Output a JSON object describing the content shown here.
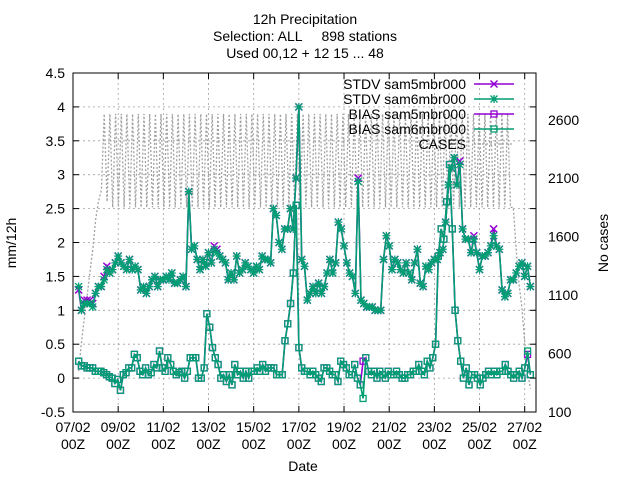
{
  "chart_data": {
    "type": "line",
    "title": [
      "12h Precipitation",
      "Selection: ALL     898 stations",
      "Used 00,12 + 12 15 ... 48"
    ],
    "xlabel": "Date",
    "ylabel": "mm/12h",
    "y2label": "No cases",
    "x_ticks": [
      [
        "07/02",
        "00Z"
      ],
      [
        "09/02",
        "00Z"
      ],
      [
        "11/02",
        "00Z"
      ],
      [
        "13/02",
        "00Z"
      ],
      [
        "15/02",
        "00Z"
      ],
      [
        "17/02",
        "00Z"
      ],
      [
        "19/02",
        "00Z"
      ],
      [
        "21/02",
        "00Z"
      ],
      [
        "23/02",
        "00Z"
      ],
      [
        "25/02",
        "00Z"
      ],
      [
        "27/02",
        "00Z"
      ]
    ],
    "x_range_days": [
      0,
      20.5
    ],
    "ylim": [
      -0.5,
      4.5
    ],
    "y_ticks": [
      "-0.5",
      "0",
      "0.5",
      "1",
      "1.5",
      "2",
      "2.5",
      "3",
      "3.5",
      "4",
      "4.5"
    ],
    "y2lim": [
      100,
      3000
    ],
    "y2_ticks": [
      "100",
      "600",
      "1100",
      "1600",
      "2100",
      "2600"
    ],
    "grid": true,
    "legend_position": "top-right",
    "series": [
      {
        "name": "STDV sam5mbr000",
        "axis": "y1",
        "color": "#9400d3",
        "marker": "x-cross",
        "y": [
          1.3,
          1.0,
          1.15,
          1.15,
          1.15,
          1.1,
          1.25,
          1.35,
          1.35,
          1.5,
          1.65,
          1.55,
          1.6,
          1.7,
          1.8,
          1.7,
          1.65,
          1.6,
          1.75,
          1.6,
          1.65,
          1.6,
          1.3,
          1.35,
          1.25,
          1.35,
          1.45,
          1.5,
          1.35,
          1.45,
          1.45,
          1.5,
          1.45,
          1.55,
          1.4,
          1.4,
          1.45,
          1.5,
          1.35,
          2.75,
          1.9,
          1.95,
          1.75,
          1.6,
          1.75,
          1.65,
          1.85,
          1.7,
          1.95,
          1.9,
          1.8,
          1.75,
          1.7,
          1.45,
          1.55,
          1.45,
          1.8,
          1.55,
          1.6,
          1.7,
          1.65,
          1.6,
          1.55,
          1.65,
          1.6,
          1.8,
          1.75,
          1.75,
          1.7,
          2.5,
          2.4,
          2.0,
          1.9,
          2.2,
          2.2,
          2.5,
          2.2,
          2.95,
          4.0,
          1.75,
          1.65,
          1.15,
          1.25,
          1.35,
          1.25,
          1.4,
          1.25,
          1.35,
          1.55,
          1.75,
          1.55,
          1.7,
          2.3,
          2.2,
          1.95,
          1.7,
          1.55,
          1.5,
          1.25,
          2.95,
          1.15,
          1.1,
          1.05,
          1.05,
          1.05,
          1.0,
          1.0,
          1.0,
          1.75,
          2.1,
          1.95,
          1.6,
          1.75,
          1.7,
          1.6,
          1.55,
          1.7,
          1.55,
          1.45,
          1.7,
          1.9,
          1.4,
          1.35,
          1.65,
          1.6,
          1.7,
          1.75,
          1.75,
          1.85,
          1.9,
          2.3,
          2.85,
          3.1,
          3.25,
          2.85,
          3.2,
          2.2,
          2.05,
          2.05,
          1.85,
          2.1,
          1.85,
          1.6,
          1.8,
          1.8,
          1.85,
          1.95,
          2.2,
          1.95,
          1.9,
          1.3,
          1.2,
          1.25,
          1.45,
          1.45,
          1.55,
          1.65,
          1.7,
          1.5,
          1.65,
          1.35
        ]
      },
      {
        "name": "STDV sam6mbr000",
        "axis": "y1",
        "color": "#009e73",
        "marker": "star",
        "y": [
          1.35,
          1.0,
          1.1,
          1.1,
          1.1,
          1.05,
          1.25,
          1.35,
          1.35,
          1.45,
          1.6,
          1.55,
          1.6,
          1.7,
          1.8,
          1.7,
          1.65,
          1.6,
          1.75,
          1.6,
          1.65,
          1.6,
          1.3,
          1.35,
          1.25,
          1.35,
          1.45,
          1.5,
          1.35,
          1.45,
          1.45,
          1.5,
          1.45,
          1.55,
          1.4,
          1.4,
          1.45,
          1.5,
          1.35,
          2.75,
          1.9,
          1.95,
          1.75,
          1.6,
          1.75,
          1.65,
          1.85,
          1.7,
          1.9,
          1.85,
          1.8,
          1.75,
          1.7,
          1.45,
          1.55,
          1.45,
          1.8,
          1.55,
          1.6,
          1.7,
          1.65,
          1.6,
          1.55,
          1.65,
          1.6,
          1.8,
          1.75,
          1.75,
          1.7,
          2.5,
          2.4,
          2.0,
          1.9,
          2.2,
          2.2,
          2.5,
          2.2,
          2.95,
          4.0,
          1.75,
          1.65,
          1.15,
          1.25,
          1.35,
          1.25,
          1.4,
          1.25,
          1.35,
          1.55,
          1.75,
          1.55,
          1.7,
          2.3,
          2.2,
          1.95,
          1.7,
          1.55,
          1.5,
          1.25,
          2.9,
          1.15,
          1.1,
          1.05,
          1.05,
          1.05,
          1.0,
          1.0,
          1.0,
          1.75,
          2.1,
          1.95,
          1.6,
          1.75,
          1.7,
          1.6,
          1.55,
          1.7,
          1.55,
          1.45,
          1.7,
          1.9,
          1.4,
          1.35,
          1.65,
          1.6,
          1.7,
          1.75,
          1.75,
          1.85,
          1.9,
          2.3,
          2.85,
          3.1,
          3.25,
          2.85,
          3.15,
          2.2,
          2.05,
          2.05,
          1.85,
          2.05,
          1.85,
          1.6,
          1.8,
          1.8,
          1.85,
          1.95,
          2.1,
          1.95,
          1.9,
          1.3,
          1.2,
          1.25,
          1.45,
          1.45,
          1.55,
          1.65,
          1.7,
          1.5,
          1.65,
          1.35
        ]
      },
      {
        "name": "BIAS sam5mbr000",
        "axis": "y1",
        "color": "#9400d3",
        "marker": "square",
        "y": [
          0.25,
          0.18,
          0.18,
          0.15,
          0.15,
          0.15,
          0.1,
          0.1,
          0.1,
          0.08,
          0.05,
          0.02,
          0.0,
          -0.08,
          -0.02,
          -0.18,
          0.05,
          0.08,
          0.15,
          0.15,
          0.35,
          0.3,
          0.1,
          0.05,
          0.15,
          0.05,
          0.08,
          0.2,
          0.15,
          0.4,
          0.15,
          0.1,
          0.3,
          0.2,
          0.1,
          0.05,
          0.08,
          0.1,
          0.0,
          0.1,
          0.3,
          0.3,
          0.3,
          0.0,
          0.0,
          0.15,
          0.95,
          0.75,
          0.45,
          0.3,
          0.2,
          0.0,
          0.05,
          -0.05,
          0.05,
          -0.1,
          0.2,
          0.05,
          0.1,
          0.0,
          0.1,
          0.0,
          0.1,
          0.1,
          0.15,
          0.1,
          0.2,
          0.1,
          0.15,
          0.15,
          0.15,
          0.05,
          0.05,
          0.05,
          0.55,
          0.8,
          1.1,
          1.55,
          2.55,
          0.45,
          0.15,
          0.1,
          0.1,
          0.05,
          0.1,
          0.05,
          0.0,
          -0.05,
          0.15,
          0.15,
          0.1,
          0.05,
          0.05,
          -0.05,
          0.25,
          0.2,
          0.15,
          0.05,
          0.05,
          0.2,
          0.0,
          -0.1,
          0.25,
          0.3,
          0.1,
          0.05,
          0.1,
          0.0,
          0.1,
          0.05,
          0.0,
          0.1,
          0.05,
          0.05,
          0.1,
          0.05,
          0.0,
          0.0,
          0.05,
          0.05,
          0.1,
          0.1,
          0.2,
          0.1,
          0.05,
          0.25,
          0.15,
          0.3,
          0.5,
          1.8,
          2.2,
          2.05,
          2.6,
          3.15,
          2.2,
          1.0,
          0.55,
          0.25,
          0.0,
          0.15,
          -0.1,
          0.05,
          0.05,
          0.0,
          -0.1,
          0.0,
          0.05,
          0.1,
          0.05,
          0.1,
          0.05,
          0.1,
          0.1,
          0.2,
          0.1,
          0.05,
          0.0,
          0.05,
          0.1,
          0.0,
          0.15,
          0.35,
          0.05
        ]
      },
      {
        "name": "BIAS sam6mbr000",
        "axis": "y1",
        "color": "#009e73",
        "marker": "square",
        "y": [
          0.25,
          0.18,
          0.18,
          0.15,
          0.15,
          0.15,
          0.1,
          0.1,
          0.1,
          0.08,
          0.05,
          0.02,
          0.0,
          -0.08,
          -0.02,
          -0.18,
          0.05,
          0.08,
          0.15,
          0.15,
          0.35,
          0.3,
          0.1,
          0.05,
          0.15,
          0.05,
          0.08,
          0.2,
          0.15,
          0.4,
          0.15,
          0.1,
          0.3,
          0.2,
          0.1,
          0.05,
          0.08,
          0.1,
          0.0,
          0.1,
          0.3,
          0.3,
          0.3,
          0.0,
          0.0,
          0.15,
          0.95,
          0.75,
          0.45,
          0.3,
          0.2,
          0.0,
          0.05,
          -0.05,
          0.05,
          -0.1,
          0.2,
          0.05,
          0.1,
          0.0,
          0.1,
          0.0,
          0.1,
          0.1,
          0.15,
          0.1,
          0.2,
          0.1,
          0.15,
          0.15,
          0.15,
          0.05,
          0.05,
          0.05,
          0.55,
          0.8,
          1.1,
          1.55,
          2.55,
          0.45,
          0.15,
          0.1,
          0.1,
          0.05,
          0.1,
          0.05,
          0.0,
          -0.05,
          0.15,
          0.15,
          0.1,
          0.05,
          0.05,
          -0.05,
          0.25,
          0.2,
          0.15,
          0.05,
          0.05,
          0.2,
          0.0,
          -0.1,
          -0.3,
          0.3,
          0.1,
          0.05,
          0.1,
          0.0,
          0.1,
          0.05,
          0.0,
          0.1,
          0.05,
          0.05,
          0.1,
          0.05,
          0.0,
          0.0,
          0.05,
          0.05,
          0.1,
          0.1,
          0.2,
          0.1,
          0.05,
          0.25,
          0.15,
          0.3,
          0.5,
          1.8,
          2.2,
          2.05,
          2.6,
          3.15,
          2.2,
          1.0,
          0.55,
          0.25,
          0.0,
          0.15,
          -0.1,
          0.05,
          0.05,
          0.0,
          -0.1,
          0.0,
          0.05,
          0.1,
          0.05,
          0.1,
          0.05,
          0.1,
          0.1,
          0.2,
          0.1,
          0.05,
          0.0,
          0.05,
          0.1,
          0.0,
          0.15,
          0.4,
          0.05
        ]
      },
      {
        "name": "CASES",
        "axis": "y2",
        "color": "#a0a0a0",
        "marker": "none",
        "dashed": true,
        "y": [
          450,
          700,
          900,
          1100,
          1300,
          1500,
          1750,
          1900,
          2000,
          2650,
          1900,
          2650,
          1850,
          2650,
          1850,
          2650,
          1850,
          2650,
          1850,
          2650,
          1850,
          2650,
          1850,
          2650,
          1850,
          2650,
          1850,
          2650,
          1850,
          2650,
          1850,
          2650,
          1850,
          2650,
          1850,
          2650,
          1850,
          2650,
          1850,
          2650,
          1850,
          2650,
          1850,
          2650,
          1850,
          2650,
          1850,
          2650,
          1850,
          2650,
          1850,
          2650,
          1850,
          2650,
          1850,
          2650,
          1850,
          2650,
          1850,
          2650,
          1850,
          2650,
          1850,
          2650,
          1850,
          2650,
          1850,
          2650,
          1850,
          2650,
          1850,
          2650,
          1850,
          2650,
          1850,
          2650,
          1850,
          2650,
          1850,
          2650,
          1850,
          2650,
          1850,
          2650,
          1850,
          2650,
          1850,
          2650,
          1850,
          2650,
          1850,
          2650,
          1850,
          2650,
          1850,
          2650,
          1850,
          2650,
          1850,
          2650,
          1850,
          2650,
          1850,
          2650,
          1850,
          2650,
          1850,
          2650,
          1850,
          2650,
          1850,
          2650,
          1850,
          2650,
          1850,
          2650,
          1850,
          2650,
          1850,
          2650,
          1850,
          2650,
          1850,
          2650,
          1850,
          2650,
          1850,
          2650,
          1850,
          2650,
          1850,
          2650,
          1850,
          2650,
          1850,
          2650,
          1850,
          2650,
          1850,
          2650,
          1850,
          2650,
          1850,
          2650,
          1850,
          2650,
          1850,
          2650,
          1850,
          2650,
          1850,
          2650,
          1850,
          1850,
          1500,
          1200,
          1000,
          700,
          450,
          300
        ]
      }
    ]
  }
}
